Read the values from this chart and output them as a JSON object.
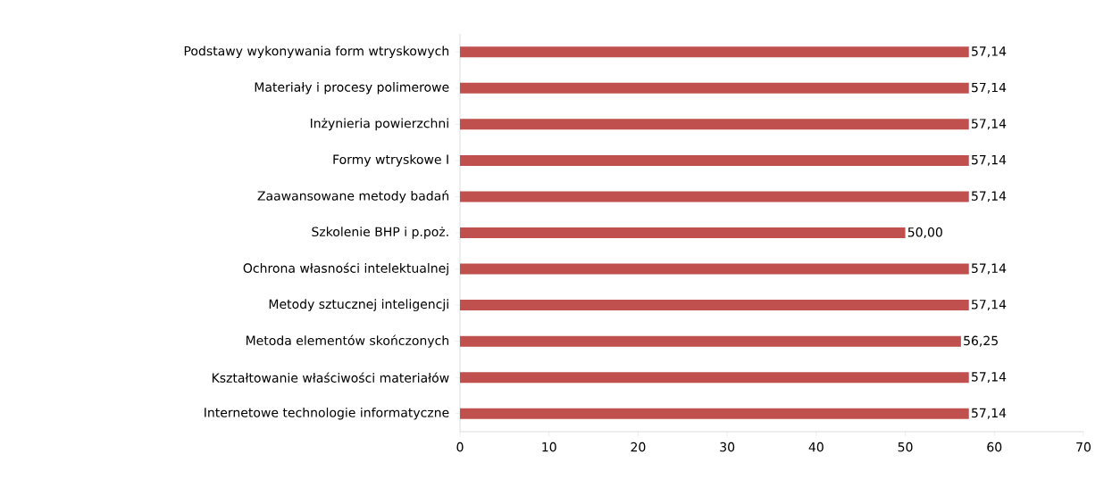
{
  "chart_data": {
    "type": "bar",
    "orientation": "horizontal",
    "categories": [
      "Podstawy wykonywania form wtryskowych",
      "Materiały i procesy polimerowe",
      "Inżynieria powierzchni",
      "Formy wtryskowe I",
      "Zaawansowane metody badań",
      "Szkolenie BHP i p.poż.",
      "Ochrona własności intelektualnej",
      "Metody sztucznej inteligencji",
      "Metoda elementów skończonych",
      "Kształtowanie właściwości materiałów",
      "Internetowe technologie informatyczne"
    ],
    "values": [
      57.14,
      57.14,
      57.14,
      57.14,
      57.14,
      50.0,
      57.14,
      57.14,
      56.25,
      57.14,
      57.14
    ],
    "value_labels": [
      "57,14",
      "57,14",
      "57,14",
      "57,14",
      "57,14",
      "50,00",
      "57,14",
      "57,14",
      "56,25",
      "57,14",
      "57,14"
    ],
    "color": "#c0504d",
    "xlim": [
      0,
      70
    ],
    "xticks": [
      0,
      10,
      20,
      30,
      40,
      50,
      60,
      70
    ],
    "grid": false
  }
}
